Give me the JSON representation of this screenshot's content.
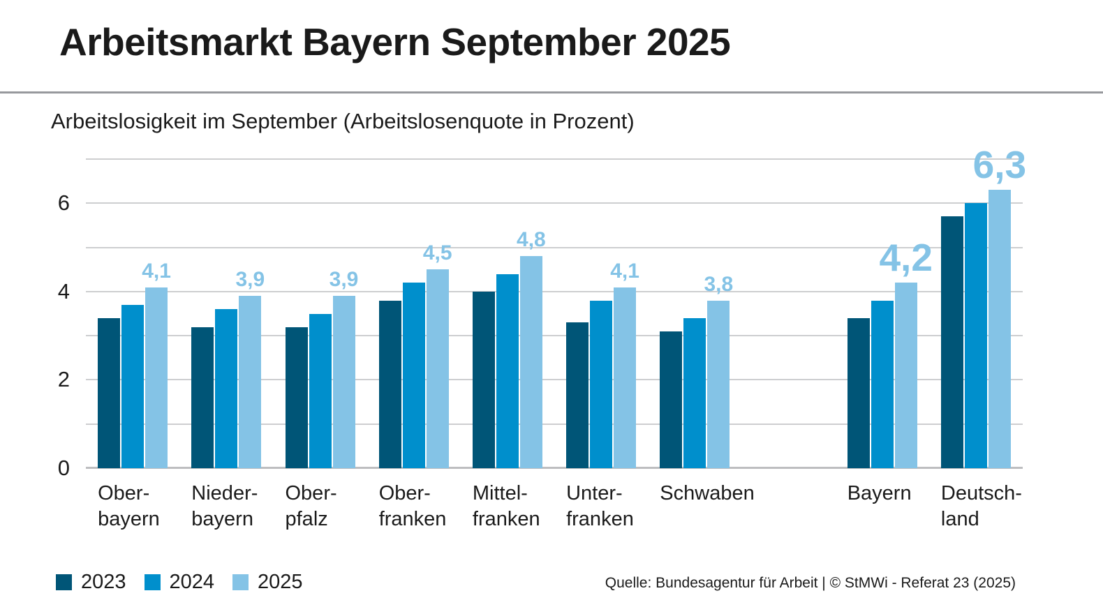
{
  "header": {
    "title": "Arbeitsmarkt Bayern September 2025",
    "subtitle": "Arbeitslosigkeit im September (Arbeitslosenquote in Prozent)"
  },
  "footer": {
    "source": "Quelle: Bundesagentur für Arbeit | © StMWi - Referat 23 (2025)"
  },
  "colors": {
    "series_2023": "#005577",
    "series_2024": "#008FCC",
    "series_2025": "#84C3E6",
    "bar_label": "#84C3E6",
    "grid": "#CDCED0",
    "axis": "#BDBEC0",
    "separator": "#97999D",
    "text": "#1A1A1A"
  },
  "chart_data": {
    "type": "bar",
    "title": "Arbeitslosigkeit im September (Arbeitslosenquote in Prozent)",
    "xlabel": "",
    "ylabel": "Arbeitslosenquote in Prozent",
    "ylim": [
      0,
      7
    ],
    "yticks_labeled": [
      0,
      2,
      4,
      6
    ],
    "gridlines": "every 1, horizontal",
    "legend_position": "bottom-left",
    "decimal_separator": ",",
    "num_slots": 10,
    "categories": [
      {
        "name": "Oberbayern",
        "lines": [
          "Ober-",
          "bayern"
        ],
        "slot": 0,
        "top_label": "4,1",
        "top_label_large": false
      },
      {
        "name": "Niederbayern",
        "lines": [
          "Nieder-",
          "bayern"
        ],
        "slot": 1,
        "top_label": "3,9",
        "top_label_large": false
      },
      {
        "name": "Oberpfalz",
        "lines": [
          "Ober-",
          "pfalz"
        ],
        "slot": 2,
        "top_label": "3,9",
        "top_label_large": false
      },
      {
        "name": "Oberfranken",
        "lines": [
          "Ober-",
          "franken"
        ],
        "slot": 3,
        "top_label": "4,5",
        "top_label_large": false
      },
      {
        "name": "Mittelfranken",
        "lines": [
          "Mittel-",
          "franken"
        ],
        "slot": 4,
        "top_label": "4,8",
        "top_label_large": false
      },
      {
        "name": "Unterfranken",
        "lines": [
          "Unter-",
          "franken"
        ],
        "slot": 5,
        "top_label": "4,1",
        "top_label_large": false
      },
      {
        "name": "Schwaben",
        "lines": [
          "Schwaben"
        ],
        "slot": 6,
        "top_label": "3,8",
        "top_label_large": false
      },
      {
        "name": "Bayern",
        "lines": [
          "Bayern"
        ],
        "slot": 8,
        "top_label": "4,2",
        "top_label_large": true
      },
      {
        "name": "Deutschland",
        "lines": [
          "Deutsch-",
          "land"
        ],
        "slot": 9,
        "top_label": "6,3",
        "top_label_large": true
      }
    ],
    "series": [
      {
        "name": "2023",
        "color": "#005577",
        "values": [
          3.4,
          3.2,
          3.2,
          3.8,
          4.0,
          3.3,
          3.1,
          3.4,
          5.7
        ]
      },
      {
        "name": "2024",
        "color": "#008FCC",
        "values": [
          3.7,
          3.6,
          3.5,
          4.2,
          4.4,
          3.8,
          3.4,
          3.8,
          6.0
        ]
      },
      {
        "name": "2025",
        "color": "#84C3E6",
        "values": [
          4.1,
          3.9,
          3.9,
          4.5,
          4.8,
          4.1,
          3.8,
          4.2,
          6.3
        ]
      }
    ]
  }
}
